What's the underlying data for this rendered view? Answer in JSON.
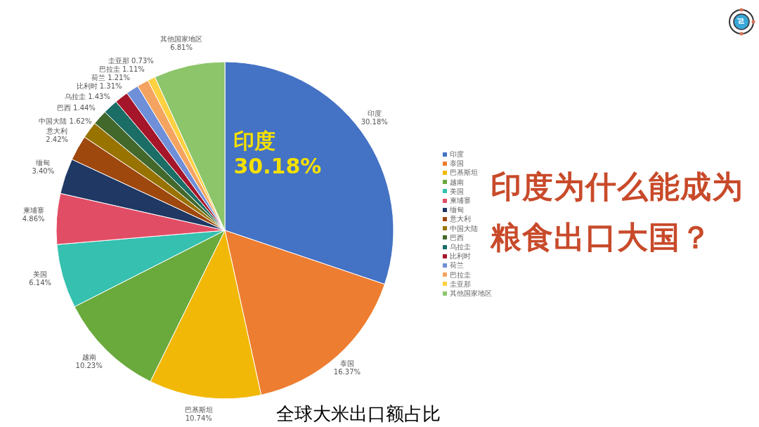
{
  "chart_data": {
    "type": "pie",
    "title": "印度为什么能成为粮食出口大国？",
    "subtitle": "全球大米出口额占比",
    "annotations": [
      "印度",
      "30.18%"
    ],
    "categories": [
      "印度",
      "泰国",
      "巴基斯坦",
      "越南",
      "美国",
      "柬埔寨",
      "缅甸",
      "意大利",
      "中国大陆",
      "巴西",
      "乌拉圭",
      "比利时",
      "荷兰",
      "巴拉圭",
      "圭亚那",
      "其他国家地区"
    ],
    "values": [
      30.18,
      16.37,
      10.74,
      10.23,
      6.14,
      4.86,
      3.4,
      2.42,
      1.62,
      1.44,
      1.43,
      1.31,
      1.21,
      1.11,
      0.73,
      6.81
    ],
    "value_labels": [
      "30.18%",
      "16.37%",
      "10.74%",
      "10.23%",
      "6.14%",
      "4.86%",
      "3.40%",
      "2.42%",
      "1.62%",
      "1.44%",
      "1.43%",
      "1.31%",
      "1.21%",
      "1.11%",
      "0.73%",
      "6.81%"
    ],
    "colors": [
      "#4472c4",
      "#ed7d31",
      "#f2b807",
      "#6aaa3c",
      "#35c0b0",
      "#e24d66",
      "#1f3864",
      "#9e480e",
      "#997300",
      "#43682b",
      "#1a6e66",
      "#a5162a",
      "#6f8fd8",
      "#f4a460",
      "#ffd040",
      "#8cc56a"
    ],
    "legend": "right"
  }
}
